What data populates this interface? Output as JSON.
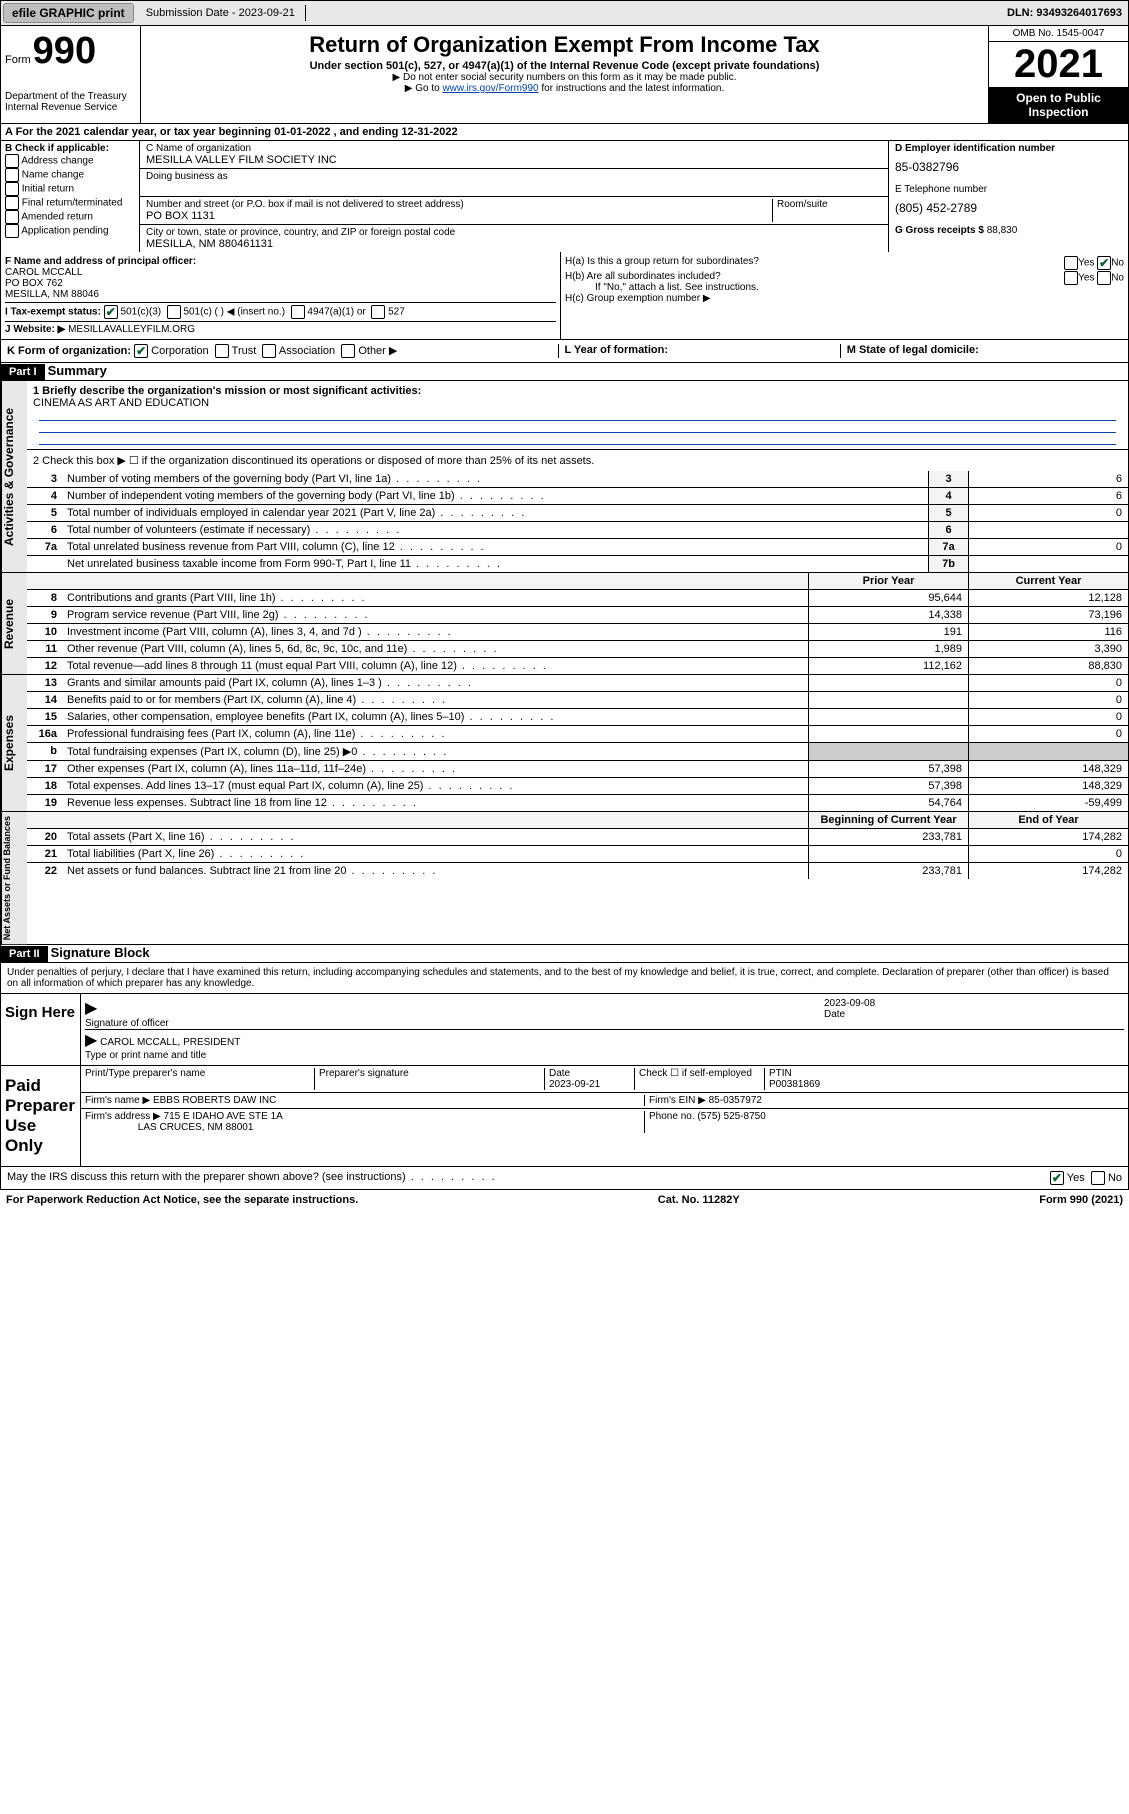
{
  "topbar": {
    "efile": "efile GRAPHIC print",
    "subdate_lbl": "Submission Date - 2023-09-21",
    "dln": "DLN: 93493264017693"
  },
  "header": {
    "form_label": "Form",
    "form_num": "990",
    "dept": "Department of the Treasury",
    "irs": "Internal Revenue Service",
    "title": "Return of Organization Exempt From Income Tax",
    "sub1": "Under section 501(c), 527, or 4947(a)(1) of the Internal Revenue Code (except private foundations)",
    "sub2": "▶ Do not enter social security numbers on this form as it may be made public.",
    "sub3_pre": "▶ Go to ",
    "sub3_link": "www.irs.gov/Form990",
    "sub3_post": " for instructions and the latest information.",
    "omb": "OMB No. 1545-0047",
    "year": "2021",
    "open": "Open to Public Inspection"
  },
  "row_a": "A For the 2021 calendar year, or tax year beginning 01-01-2022  , and ending 12-31-2022",
  "col_b": {
    "head": "B Check if applicable:",
    "items": [
      "Address change",
      "Name change",
      "Initial return",
      "Final return/terminated",
      "Amended return",
      "Application pending"
    ]
  },
  "col_c": {
    "name_lbl": "C Name of organization",
    "name_val": "MESILLA VALLEY FILM SOCIETY INC",
    "dba_lbl": "Doing business as",
    "addr_lbl": "Number and street (or P.O. box if mail is not delivered to street address)",
    "room_lbl": "Room/suite",
    "addr_val": "PO BOX 1131",
    "city_lbl": "City or town, state or province, country, and ZIP or foreign postal code",
    "city_val": "MESILLA, NM  880461131"
  },
  "col_d": {
    "ein_lbl": "D Employer identification number",
    "ein_val": "85-0382796",
    "tel_lbl": "E Telephone number",
    "tel_val": "(805) 452-2789",
    "gross_lbl": "G Gross receipts $",
    "gross_val": "88,830"
  },
  "row_f": {
    "f_lbl": "F Name and address of principal officer:",
    "f_name": "CAROL MCCALL",
    "f_addr1": "PO BOX 762",
    "f_addr2": "MESILLA, NM  88046",
    "i_lbl": "I    Tax-exempt status:",
    "i_opt1": "501(c)(3)",
    "i_opt2": "501(c) (   ) ◀ (insert no.)",
    "i_opt3": "4947(a)(1) or",
    "i_opt4": "527",
    "j_lbl": "J   Website: ▶",
    "j_val": "MESILLAVALLEYFILM.ORG"
  },
  "row_h": {
    "ha": "H(a)  Is this a group return for subordinates?",
    "hb": "H(b)  Are all subordinates included?",
    "hb_note": "If \"No,\" attach a list. See instructions.",
    "hc": "H(c)  Group exemption number ▶",
    "yes": "Yes",
    "no": "No"
  },
  "row_k": "K Form of organization:",
  "k_opts": [
    "Corporation",
    "Trust",
    "Association",
    "Other ▶"
  ],
  "row_l": "L Year of formation:",
  "row_m": "M State of legal domicile:",
  "part1": {
    "header": "Part I",
    "title": "Summary",
    "line1_lbl": "1  Briefly describe the organization's mission or most significant activities:",
    "mission": "CINEMA AS ART AND EDUCATION",
    "line2": "2   Check this box ▶ ☐  if the organization discontinued its operations or disposed of more than 25% of its net assets.",
    "rows_gov": [
      {
        "n": "3",
        "d": "Number of voting members of the governing body (Part VI, line 1a)",
        "box": "3",
        "v": "6"
      },
      {
        "n": "4",
        "d": "Number of independent voting members of the governing body (Part VI, line 1b)",
        "box": "4",
        "v": "6"
      },
      {
        "n": "5",
        "d": "Total number of individuals employed in calendar year 2021 (Part V, line 2a)",
        "box": "5",
        "v": "0"
      },
      {
        "n": "6",
        "d": "Total number of volunteers (estimate if necessary)",
        "box": "6",
        "v": ""
      },
      {
        "n": "7a",
        "d": "Total unrelated business revenue from Part VIII, column (C), line 12",
        "box": "7a",
        "v": "0"
      },
      {
        "n": "",
        "d": "Net unrelated business taxable income from Form 990-T, Part I, line 11",
        "box": "7b",
        "v": ""
      }
    ],
    "col_prior": "Prior Year",
    "col_current": "Current Year",
    "rows_rev": [
      {
        "n": "8",
        "d": "Contributions and grants (Part VIII, line 1h)",
        "p": "95,644",
        "c": "12,128"
      },
      {
        "n": "9",
        "d": "Program service revenue (Part VIII, line 2g)",
        "p": "14,338",
        "c": "73,196"
      },
      {
        "n": "10",
        "d": "Investment income (Part VIII, column (A), lines 3, 4, and 7d )",
        "p": "191",
        "c": "116"
      },
      {
        "n": "11",
        "d": "Other revenue (Part VIII, column (A), lines 5, 6d, 8c, 9c, 10c, and 11e)",
        "p": "1,989",
        "c": "3,390"
      },
      {
        "n": "12",
        "d": "Total revenue—add lines 8 through 11 (must equal Part VIII, column (A), line 12)",
        "p": "112,162",
        "c": "88,830"
      }
    ],
    "rows_exp": [
      {
        "n": "13",
        "d": "Grants and similar amounts paid (Part IX, column (A), lines 1–3 )",
        "p": "",
        "c": "0"
      },
      {
        "n": "14",
        "d": "Benefits paid to or for members (Part IX, column (A), line 4)",
        "p": "",
        "c": "0"
      },
      {
        "n": "15",
        "d": "Salaries, other compensation, employee benefits (Part IX, column (A), lines 5–10)",
        "p": "",
        "c": "0"
      },
      {
        "n": "16a",
        "d": "Professional fundraising fees (Part IX, column (A), line 11e)",
        "p": "",
        "c": "0"
      },
      {
        "n": "b",
        "d": "Total fundraising expenses (Part IX, column (D), line 25) ▶0",
        "p": "—",
        "c": "—"
      },
      {
        "n": "17",
        "d": "Other expenses (Part IX, column (A), lines 11a–11d, 11f–24e)",
        "p": "57,398",
        "c": "148,329"
      },
      {
        "n": "18",
        "d": "Total expenses. Add lines 13–17 (must equal Part IX, column (A), line 25)",
        "p": "57,398",
        "c": "148,329"
      },
      {
        "n": "19",
        "d": "Revenue less expenses. Subtract line 18 from line 12",
        "p": "54,764",
        "c": "-59,499"
      }
    ],
    "col_begin": "Beginning of Current Year",
    "col_end": "End of Year",
    "rows_net": [
      {
        "n": "20",
        "d": "Total assets (Part X, line 16)",
        "p": "233,781",
        "c": "174,282"
      },
      {
        "n": "21",
        "d": "Total liabilities (Part X, line 26)",
        "p": "",
        "c": "0"
      },
      {
        "n": "22",
        "d": "Net assets or fund balances. Subtract line 21 from line 20",
        "p": "233,781",
        "c": "174,282"
      }
    ]
  },
  "part2": {
    "header": "Part II",
    "title": "Signature Block",
    "decl": "Under penalties of perjury, I declare that I have examined this return, including accompanying schedules and statements, and to the best of my knowledge and belief, it is true, correct, and complete. Declaration of preparer (other than officer) is based on all information of which preparer has any knowledge.",
    "sign_here": "Sign Here",
    "sig_officer": "Signature of officer",
    "sig_date": "2023-09-08",
    "date_lbl": "Date",
    "officer_name": "CAROL MCCALL, PRESIDENT",
    "officer_type": "Type or print name and title",
    "paid": "Paid Preparer Use Only",
    "prep_name_lbl": "Print/Type preparer's name",
    "prep_sig_lbl": "Preparer's signature",
    "prep_date_lbl": "Date",
    "prep_date": "2023-09-21",
    "check_lbl": "Check ☐ if self-employed",
    "ptin_lbl": "PTIN",
    "ptin": "P00381869",
    "firm_name_lbl": "Firm's name    ▶",
    "firm_name": "EBBS ROBERTS DAW INC",
    "firm_ein_lbl": "Firm's EIN ▶",
    "firm_ein": "85-0357972",
    "firm_addr_lbl": "Firm's address ▶",
    "firm_addr1": "715 E IDAHO AVE STE 1A",
    "firm_addr2": "LAS CRUCES, NM  88001",
    "phone_lbl": "Phone no.",
    "phone": "(575) 525-8750",
    "discuss": "May the IRS discuss this return with the preparer shown above? (see instructions)"
  },
  "footer": {
    "left": "For Paperwork Reduction Act Notice, see the separate instructions.",
    "mid": "Cat. No. 11282Y",
    "right": "Form 990 (2021)"
  },
  "sides": {
    "gov": "Activities & Governance",
    "rev": "Revenue",
    "exp": "Expenses",
    "net": "Net Assets or Fund Balances"
  }
}
